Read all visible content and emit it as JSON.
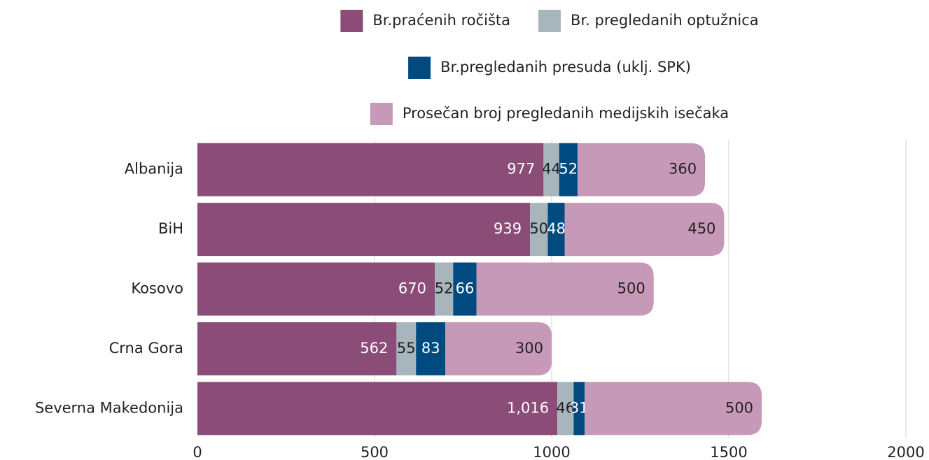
{
  "chart_data": {
    "type": "stacked_barh",
    "categories": [
      "Albanija",
      "BiH",
      "Kosovo",
      "Crna Gora",
      "Severna Makedonija"
    ],
    "series": [
      {
        "name": "Br.praćenih ročišta",
        "color": "#8b4c78",
        "values": [
          977,
          939,
          670,
          562,
          1016
        ],
        "value_labels": [
          "977",
          "939",
          "670",
          "562",
          "1,016"
        ]
      },
      {
        "name": "Br. pregledanih optužnica",
        "color": "#a7b6bd",
        "values": [
          44,
          50,
          52,
          55,
          46
        ]
      },
      {
        "name": "Br.pregledanih presuda (uklj. SPK)",
        "color": "#004a80",
        "values": [
          52,
          48,
          66,
          83,
          31
        ]
      },
      {
        "name": "Prosečan broj pregledanih medijskih isečaka",
        "color": "#c699b8",
        "values": [
          360,
          450,
          500,
          300,
          500
        ]
      }
    ],
    "xlim": [
      0,
      2000
    ],
    "xticks": [
      0,
      500,
      1000,
      1500,
      2000
    ],
    "grid": true
  }
}
